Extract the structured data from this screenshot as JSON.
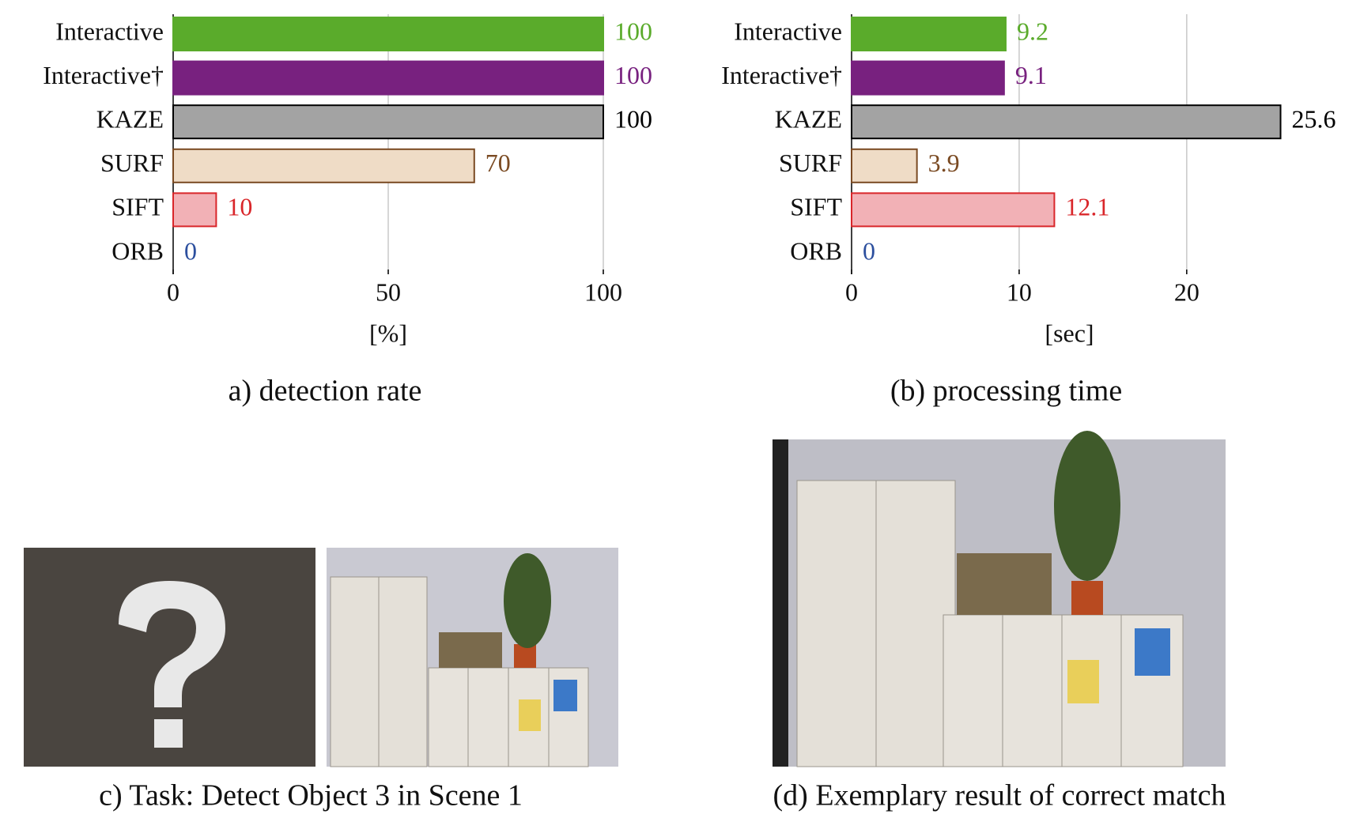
{
  "chart_data": [
    {
      "type": "hbar",
      "caption": "a) detection rate",
      "xlabel": "[%]",
      "categories": [
        "Interactive",
        "Interactive†",
        "KAZE",
        "SURF",
        "SIFT",
        "ORB"
      ],
      "values": [
        100,
        100,
        100,
        70,
        10,
        0
      ],
      "colors": [
        "#5aab2b",
        "#78217f",
        "#a3a3a3",
        "#efdcc6",
        "#f2b1b6",
        "#ffffff"
      ],
      "edge_colors": [
        "#5aab2b",
        "#78217f",
        "#000000",
        "#7a4a22",
        "#d9262a",
        "#2c4f9e"
      ],
      "label_colors": [
        "#5aab2b",
        "#78217f",
        "#000000",
        "#7a4a22",
        "#d9262a",
        "#2c4f9e"
      ],
      "xlim": [
        0,
        100
      ],
      "xticks": [
        0,
        50,
        100
      ],
      "grid": true
    },
    {
      "type": "hbar",
      "caption": "(b) processing time",
      "xlabel": "[sec]",
      "categories": [
        "Interactive",
        "Interactive†",
        "KAZE",
        "SURF",
        "SIFT",
        "ORB"
      ],
      "values": [
        9.2,
        9.1,
        25.6,
        3.9,
        12.1,
        0
      ],
      "colors": [
        "#5aab2b",
        "#78217f",
        "#a3a3a3",
        "#efdcc6",
        "#f2b1b6",
        "#ffffff"
      ],
      "edge_colors": [
        "#5aab2b",
        "#78217f",
        "#000000",
        "#7a4a22",
        "#d9262a",
        "#2c4f9e"
      ],
      "label_colors": [
        "#5aab2b",
        "#78217f",
        "#000000",
        "#7a4a22",
        "#d9262a",
        "#2c4f9e"
      ],
      "xlim": [
        0,
        26
      ],
      "xticks": [
        0,
        10,
        20
      ],
      "grid": true
    }
  ],
  "panels": [
    {
      "caption": "c) Task: Detect Object 3 in Scene 1"
    },
    {
      "caption": "(d) Exemplary result of correct match"
    }
  ]
}
